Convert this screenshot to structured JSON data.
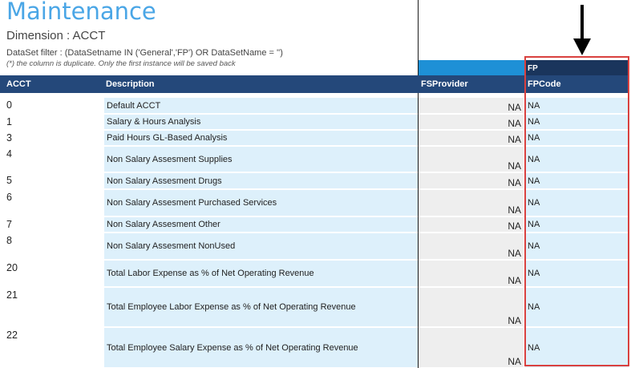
{
  "page": {
    "title": "Maintenance",
    "dimension": "Dimension : ACCT",
    "filter": "DataSet filter : (DataSetname IN ('General','FP') OR DataSetName = '')",
    "note": "(*) the column is duplicate. Only the first instance will be saved back"
  },
  "group_header": {
    "fp": "FP"
  },
  "columns": {
    "acct": "ACCT",
    "description": "Description",
    "fsprovider": "FSProvider",
    "fpcode": "FPCode"
  },
  "rows": [
    {
      "acct": "0",
      "description": "Default ACCT",
      "fsprovider": "NA",
      "fpcode": "NA"
    },
    {
      "acct": "1",
      "description": "Salary & Hours Analysis",
      "fsprovider": "NA",
      "fpcode": "NA"
    },
    {
      "acct": "3",
      "description": "Paid Hours GL-Based Analysis",
      "fsprovider": "NA",
      "fpcode": "NA"
    },
    {
      "acct": "4",
      "description": "Non Salary Assesment Supplies",
      "fsprovider": "NA",
      "fpcode": "NA"
    },
    {
      "acct": "5",
      "description": "Non Salary Assesment Drugs",
      "fsprovider": "NA",
      "fpcode": "NA"
    },
    {
      "acct": "6",
      "description": "Non Salary Assesment Purchased Services",
      "fsprovider": "NA",
      "fpcode": "NA"
    },
    {
      "acct": "7",
      "description": "Non Salary Assesment Other",
      "fsprovider": "NA",
      "fpcode": "NA"
    },
    {
      "acct": "8",
      "description": "Non Salary Assesment NonUsed",
      "fsprovider": "NA",
      "fpcode": "NA"
    },
    {
      "acct": "20",
      "description": "Total Labor Expense as % of Net Operating Revenue",
      "fsprovider": "NA",
      "fpcode": "NA"
    },
    {
      "acct": "21",
      "description": "Total Employee Labor Expense as % of Net Operating Revenue",
      "fsprovider": "NA",
      "fpcode": "NA"
    },
    {
      "acct": "22",
      "description": "Total Employee Salary Expense as % of Net Operating Revenue",
      "fsprovider": "NA",
      "fpcode": "NA"
    }
  ],
  "annotation": {
    "arrow_icon": "arrow-down-icon",
    "highlight_color": "#d9413f"
  },
  "colors": {
    "title": "#4aa6e6",
    "header": "#24487a",
    "fp_header": "#1a355c",
    "accent_bar": "#1e90d6",
    "cell": "#ddf0fb"
  }
}
